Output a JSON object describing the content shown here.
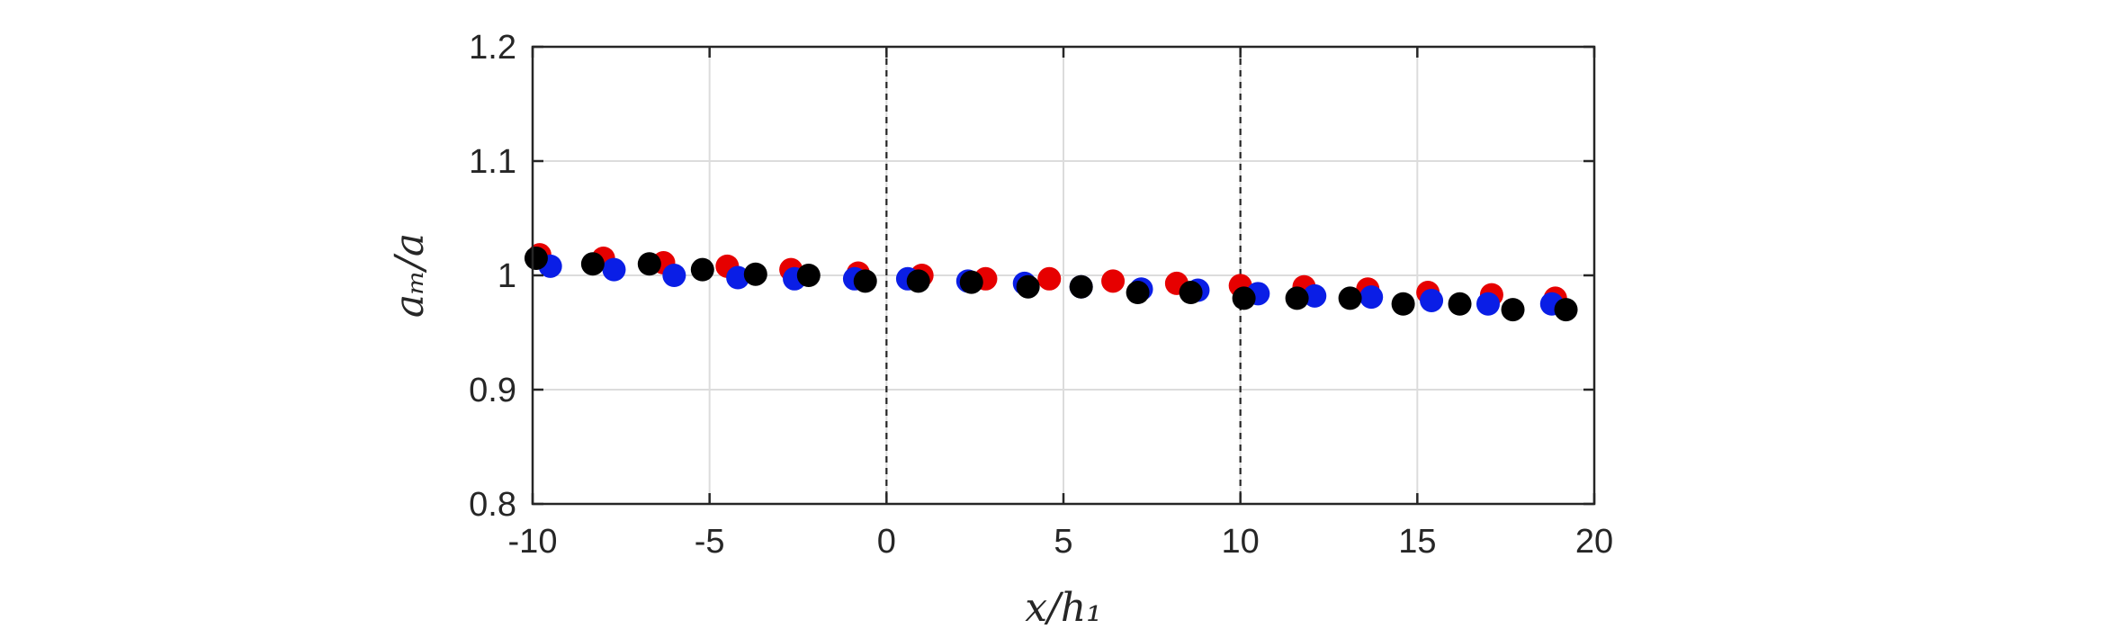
{
  "chart_data": {
    "type": "scatter",
    "xlabel": "x/h₁",
    "ylabel": "aₘ/a",
    "xlim": [
      -10,
      20
    ],
    "ylim": [
      0.8,
      1.2
    ],
    "xticks": [
      -10,
      -5,
      0,
      5,
      10,
      15,
      20
    ],
    "yticks": [
      0.8,
      0.9,
      1,
      1.1,
      1.2
    ],
    "xtick_labels": [
      "-10",
      "-5",
      "0",
      "5",
      "10",
      "15",
      "20"
    ],
    "ytick_labels": [
      "0.8",
      "0.9",
      "1",
      "1.1",
      "1.2"
    ],
    "grid": true,
    "vertical_dashed_lines": [
      0,
      10
    ],
    "colors": {
      "red": "#e60000",
      "blue": "#0a1ee6",
      "black": "#000000",
      "axis": "#262626",
      "grid": "#dcdcdc"
    },
    "series": [
      {
        "color": "red",
        "x": [
          -9.8,
          -8.0,
          -6.3,
          -4.5,
          -2.7,
          -0.8,
          1.0,
          2.8,
          4.6,
          6.4,
          8.2,
          10.0,
          11.8,
          13.6,
          15.3,
          17.1,
          18.9
        ],
        "y": [
          1.018,
          1.015,
          1.011,
          1.008,
          1.005,
          1.002,
          1.0,
          0.997,
          0.997,
          0.995,
          0.993,
          0.991,
          0.99,
          0.988,
          0.985,
          0.983,
          0.98
        ]
      },
      {
        "color": "blue",
        "x": [
          -9.5,
          -7.7,
          -6.0,
          -4.2,
          -2.6,
          -0.9,
          0.6,
          2.3,
          3.9,
          5.5,
          7.2,
          8.8,
          10.5,
          12.1,
          13.7,
          15.4,
          17.0,
          18.8
        ],
        "y": [
          1.008,
          1.005,
          1.0,
          0.998,
          0.997,
          0.997,
          0.997,
          0.995,
          0.993,
          0.99,
          0.988,
          0.987,
          0.984,
          0.982,
          0.981,
          0.978,
          0.975,
          0.975
        ]
      },
      {
        "color": "black",
        "x": [
          -9.9,
          -8.3,
          -6.7,
          -5.2,
          -3.7,
          -2.2,
          -0.6,
          0.9,
          2.4,
          4.0,
          5.5,
          7.1,
          8.6,
          10.1,
          11.6,
          13.1,
          14.6,
          16.2,
          17.7,
          19.2
        ],
        "y": [
          1.015,
          1.01,
          1.01,
          1.005,
          1.001,
          1.0,
          0.995,
          0.995,
          0.994,
          0.99,
          0.99,
          0.985,
          0.985,
          0.98,
          0.98,
          0.98,
          0.975,
          0.975,
          0.97,
          0.97
        ]
      }
    ]
  }
}
